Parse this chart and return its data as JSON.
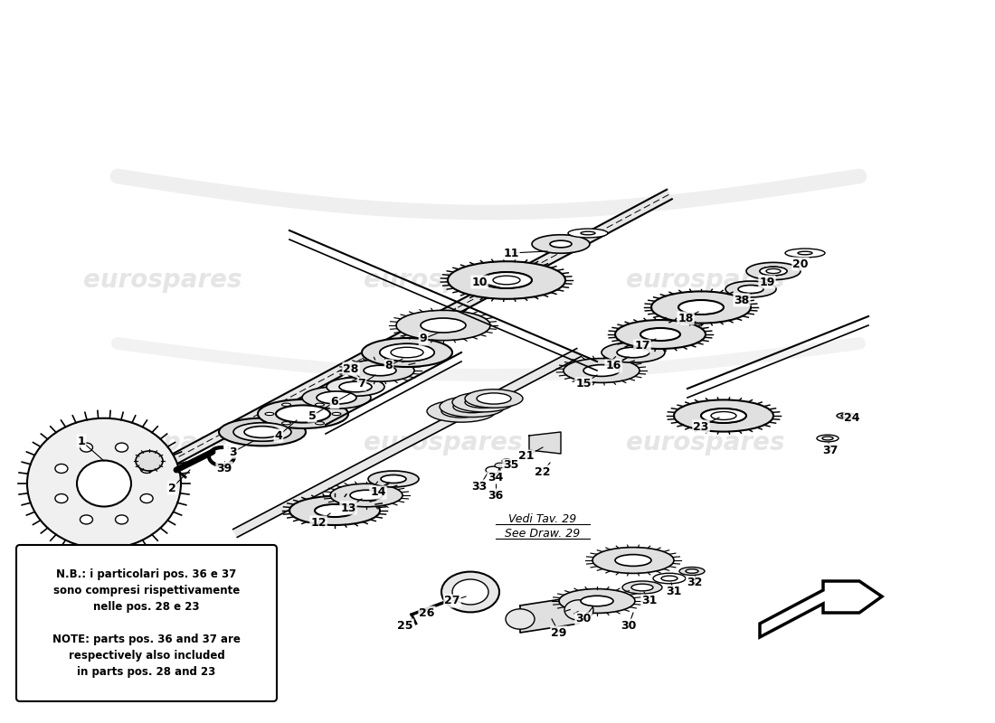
{
  "bg_color": "#ffffff",
  "line_color": "#000000",
  "light_gray": "#e0e0e0",
  "mid_gray": "#c0c0c0",
  "watermark_color": "#cccccc",
  "watermark_text": "eurospares",
  "note_text_it": "N.B.: i particolari pos. 36 e 37\nsono compresi rispettivamente\nnelle pos. 28 e 23",
  "note_text_en": "NOTE: parts pos. 36 and 37 are\nrespectively also included\nin parts pos. 28 and 23",
  "vedi_line1": "Vedi Tav. 29",
  "vedi_line2": "See Draw. 29"
}
